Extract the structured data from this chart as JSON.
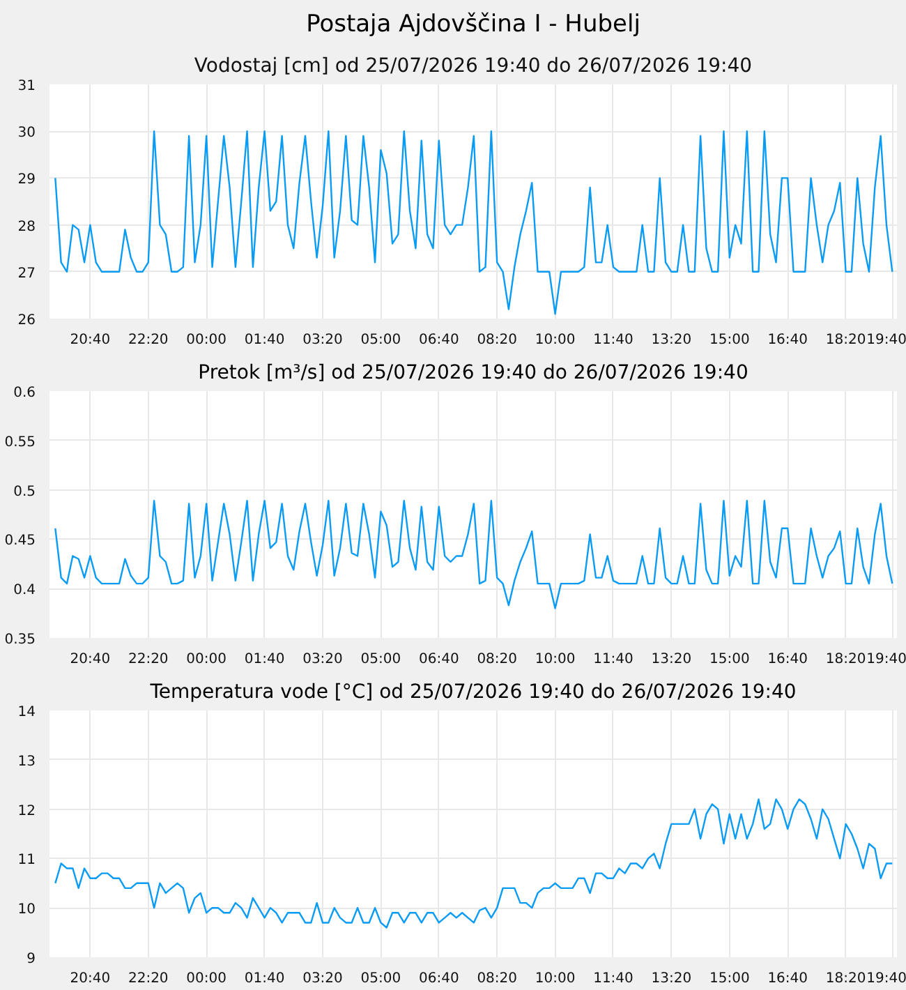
{
  "chart_data": [
    {
      "type": "line",
      "title": "Postaja Ajdovščina I - Hubelj",
      "subtitle": "Vodostaj [cm] od 25/07/2026 19:40 do 26/07/2026 19:40",
      "color": "#0a9cf5",
      "grid": true,
      "xlim": [
        "2026-07-25T19:30",
        "2026-07-26T19:48"
      ],
      "ylim": [
        26,
        31
      ],
      "yticks": [
        26,
        27,
        28,
        29,
        30,
        31
      ],
      "xticks": [
        {
          "value": "2026-07-25T20:40",
          "label": "20:40"
        },
        {
          "value": "2026-07-25T22:20",
          "label": "22:20"
        },
        {
          "value": "2026-07-26T00:00",
          "label": "00:00"
        },
        {
          "value": "2026-07-26T01:40",
          "label": "01:40"
        },
        {
          "value": "2026-07-26T03:20",
          "label": "03:20"
        },
        {
          "value": "2026-07-26T05:00",
          "label": "05:00"
        },
        {
          "value": "2026-07-26T06:40",
          "label": "06:40"
        },
        {
          "value": "2026-07-26T08:20",
          "label": "08:20"
        },
        {
          "value": "2026-07-26T10:00",
          "label": "10:00"
        },
        {
          "value": "2026-07-26T11:40",
          "label": "11:40"
        },
        {
          "value": "2026-07-26T13:20",
          "label": "13:20"
        },
        {
          "value": "2026-07-26T15:00",
          "label": "15:00"
        },
        {
          "value": "2026-07-26T16:40",
          "label": "16:40"
        },
        {
          "value": "2026-07-26T18:20",
          "label": "18:20"
        },
        {
          "value": "2026-07-26T19:40",
          "label": "19:40"
        }
      ],
      "x": [
        "2026-07-25T19:40",
        "2026-07-25T19:50",
        "2026-07-25T20:00",
        "2026-07-25T20:10",
        "2026-07-25T20:20",
        "2026-07-25T20:30",
        "2026-07-25T20:40",
        "2026-07-25T20:50",
        "2026-07-25T21:00",
        "2026-07-25T21:10",
        "2026-07-25T21:20",
        "2026-07-25T21:30",
        "2026-07-25T21:40",
        "2026-07-25T21:50",
        "2026-07-25T22:00",
        "2026-07-25T22:10",
        "2026-07-25T22:20",
        "2026-07-25T22:30",
        "2026-07-25T22:40",
        "2026-07-25T22:50",
        "2026-07-25T23:00",
        "2026-07-25T23:10",
        "2026-07-25T23:20",
        "2026-07-25T23:30",
        "2026-07-25T23:40",
        "2026-07-25T23:50",
        "2026-07-26T00:00",
        "2026-07-26T00:10",
        "2026-07-26T00:20",
        "2026-07-26T00:30",
        "2026-07-26T00:40",
        "2026-07-26T00:50",
        "2026-07-26T01:00",
        "2026-07-26T01:10",
        "2026-07-26T01:20",
        "2026-07-26T01:30",
        "2026-07-26T01:40",
        "2026-07-26T01:50",
        "2026-07-26T02:00",
        "2026-07-26T02:10",
        "2026-07-26T02:20",
        "2026-07-26T02:30",
        "2026-07-26T02:40",
        "2026-07-26T02:50",
        "2026-07-26T03:00",
        "2026-07-26T03:10",
        "2026-07-26T03:20",
        "2026-07-26T03:30",
        "2026-07-26T03:40",
        "2026-07-26T03:50",
        "2026-07-26T04:00",
        "2026-07-26T04:10",
        "2026-07-26T04:20",
        "2026-07-26T04:30",
        "2026-07-26T04:40",
        "2026-07-26T04:50",
        "2026-07-26T05:00",
        "2026-07-26T05:10",
        "2026-07-26T05:20",
        "2026-07-26T05:30",
        "2026-07-26T05:40",
        "2026-07-26T05:50",
        "2026-07-26T06:00",
        "2026-07-26T06:10",
        "2026-07-26T06:20",
        "2026-07-26T06:30",
        "2026-07-26T06:40",
        "2026-07-26T06:50",
        "2026-07-26T07:00",
        "2026-07-26T07:10",
        "2026-07-26T07:20",
        "2026-07-26T07:30",
        "2026-07-26T07:40",
        "2026-07-26T07:50",
        "2026-07-26T08:00",
        "2026-07-26T08:10",
        "2026-07-26T08:20",
        "2026-07-26T08:30",
        "2026-07-26T08:40",
        "2026-07-26T08:50",
        "2026-07-26T09:00",
        "2026-07-26T09:10",
        "2026-07-26T09:20",
        "2026-07-26T09:30",
        "2026-07-26T09:40",
        "2026-07-26T09:50",
        "2026-07-26T10:00",
        "2026-07-26T10:10",
        "2026-07-26T10:20",
        "2026-07-26T10:30",
        "2026-07-26T10:40",
        "2026-07-26T10:50",
        "2026-07-26T11:00",
        "2026-07-26T11:10",
        "2026-07-26T11:20",
        "2026-07-26T11:30",
        "2026-07-26T11:40",
        "2026-07-26T11:50",
        "2026-07-26T12:00",
        "2026-07-26T12:10",
        "2026-07-26T12:20",
        "2026-07-26T12:30",
        "2026-07-26T12:40",
        "2026-07-26T12:50",
        "2026-07-26T13:00",
        "2026-07-26T13:10",
        "2026-07-26T13:20",
        "2026-07-26T13:30",
        "2026-07-26T13:40",
        "2026-07-26T13:50",
        "2026-07-26T14:00",
        "2026-07-26T14:10",
        "2026-07-26T14:20",
        "2026-07-26T14:30",
        "2026-07-26T14:40",
        "2026-07-26T14:50",
        "2026-07-26T15:00",
        "2026-07-26T15:10",
        "2026-07-26T15:20",
        "2026-07-26T15:30",
        "2026-07-26T15:40",
        "2026-07-26T15:50",
        "2026-07-26T16:00",
        "2026-07-26T16:10",
        "2026-07-26T16:20",
        "2026-07-26T16:30",
        "2026-07-26T16:40",
        "2026-07-26T16:50",
        "2026-07-26T17:00",
        "2026-07-26T17:10",
        "2026-07-26T17:20",
        "2026-07-26T17:30",
        "2026-07-26T17:40",
        "2026-07-26T17:50",
        "2026-07-26T18:00",
        "2026-07-26T18:10",
        "2026-07-26T18:20",
        "2026-07-26T18:30",
        "2026-07-26T18:40",
        "2026-07-26T18:50",
        "2026-07-26T19:00",
        "2026-07-26T19:10",
        "2026-07-26T19:20",
        "2026-07-26T19:30",
        "2026-07-26T19:40"
      ],
      "values": [
        29.0,
        27.2,
        27.0,
        28.0,
        27.9,
        27.2,
        28.0,
        27.2,
        27.0,
        27.0,
        27.0,
        27.0,
        27.9,
        27.3,
        27.0,
        27.0,
        27.2,
        30.0,
        28.0,
        27.8,
        27.0,
        27.0,
        27.1,
        29.9,
        27.2,
        28.0,
        29.9,
        27.1,
        28.5,
        29.9,
        28.8,
        27.1,
        28.5,
        30.0,
        27.1,
        28.8,
        30.0,
        28.3,
        28.5,
        29.9,
        28.0,
        27.5,
        28.9,
        29.9,
        28.5,
        27.3,
        28.4,
        30.0,
        27.3,
        28.3,
        29.9,
        28.1,
        28.0,
        29.9,
        28.8,
        27.2,
        29.6,
        29.1,
        27.6,
        27.8,
        30.0,
        28.3,
        27.5,
        29.8,
        27.8,
        27.5,
        29.8,
        28.0,
        27.8,
        28.0,
        28.0,
        28.8,
        29.9,
        27.0,
        27.1,
        30.0,
        27.2,
        27.0,
        26.2,
        27.1,
        27.8,
        28.3,
        28.9,
        27.0,
        27.0,
        27.0,
        26.1,
        27.0,
        27.0,
        27.0,
        27.0,
        27.1,
        28.8,
        27.2,
        27.2,
        28.0,
        27.1,
        27.0,
        27.0,
        27.0,
        27.0,
        28.0,
        27.0,
        27.0,
        29.0,
        27.2,
        27.0,
        27.0,
        28.0,
        27.0,
        27.0,
        29.9,
        27.5,
        27.0,
        27.0,
        30.0,
        27.3,
        28.0,
        27.6,
        30.0,
        27.0,
        27.0,
        30.0,
        27.8,
        27.2,
        29.0,
        29.0,
        27.0,
        27.0,
        27.0,
        29.0,
        28.0,
        27.2,
        28.0,
        28.3,
        28.9,
        27.0,
        27.0,
        29.0,
        27.6,
        27.0,
        28.8,
        29.9,
        28.0,
        27.0
      ]
    },
    {
      "type": "line",
      "title": "Pretok [m³/s] od 25/07/2026 19:40 do 26/07/2026 19:40",
      "color": "#0a9cf5",
      "grid": true,
      "xlim": [
        "2026-07-25T19:30",
        "2026-07-26T19:48"
      ],
      "ylim": [
        0.35,
        0.6
      ],
      "yticks": [
        0.35,
        0.4,
        0.45,
        0.5,
        0.55,
        0.6
      ],
      "xticks": [
        {
          "value": "2026-07-25T20:40",
          "label": "20:40"
        },
        {
          "value": "2026-07-25T22:20",
          "label": "22:20"
        },
        {
          "value": "2026-07-26T00:00",
          "label": "00:00"
        },
        {
          "value": "2026-07-26T01:40",
          "label": "01:40"
        },
        {
          "value": "2026-07-26T03:20",
          "label": "03:20"
        },
        {
          "value": "2026-07-26T05:00",
          "label": "05:00"
        },
        {
          "value": "2026-07-26T06:40",
          "label": "06:40"
        },
        {
          "value": "2026-07-26T08:20",
          "label": "08:20"
        },
        {
          "value": "2026-07-26T10:00",
          "label": "10:00"
        },
        {
          "value": "2026-07-26T11:40",
          "label": "11:40"
        },
        {
          "value": "2026-07-26T13:20",
          "label": "13:20"
        },
        {
          "value": "2026-07-26T15:00",
          "label": "15:00"
        },
        {
          "value": "2026-07-26T16:40",
          "label": "16:40"
        },
        {
          "value": "2026-07-26T18:20",
          "label": "18:20"
        },
        {
          "value": "2026-07-26T19:40",
          "label": "19:40"
        }
      ],
      "x": [
        "2026-07-25T19:40",
        "2026-07-25T19:50",
        "2026-07-25T20:00",
        "2026-07-25T20:10",
        "2026-07-25T20:20",
        "2026-07-25T20:30",
        "2026-07-25T20:40",
        "2026-07-25T20:50",
        "2026-07-25T21:00",
        "2026-07-25T21:10",
        "2026-07-25T21:20",
        "2026-07-25T21:30",
        "2026-07-25T21:40",
        "2026-07-25T21:50",
        "2026-07-25T22:00",
        "2026-07-25T22:10",
        "2026-07-25T22:20",
        "2026-07-25T22:30",
        "2026-07-25T22:40",
        "2026-07-25T22:50",
        "2026-07-25T23:00",
        "2026-07-25T23:10",
        "2026-07-25T23:20",
        "2026-07-25T23:30",
        "2026-07-25T23:40",
        "2026-07-25T23:50",
        "2026-07-26T00:00",
        "2026-07-26T00:10",
        "2026-07-26T00:20",
        "2026-07-26T00:30",
        "2026-07-26T00:40",
        "2026-07-26T00:50",
        "2026-07-26T01:00",
        "2026-07-26T01:10",
        "2026-07-26T01:20",
        "2026-07-26T01:30",
        "2026-07-26T01:40",
        "2026-07-26T01:50",
        "2026-07-26T02:00",
        "2026-07-26T02:10",
        "2026-07-26T02:20",
        "2026-07-26T02:30",
        "2026-07-26T02:40",
        "2026-07-26T02:50",
        "2026-07-26T03:00",
        "2026-07-26T03:10",
        "2026-07-26T03:20",
        "2026-07-26T03:30",
        "2026-07-26T03:40",
        "2026-07-26T03:50",
        "2026-07-26T04:00",
        "2026-07-26T04:10",
        "2026-07-26T04:20",
        "2026-07-26T04:30",
        "2026-07-26T04:40",
        "2026-07-26T04:50",
        "2026-07-26T05:00",
        "2026-07-26T05:10",
        "2026-07-26T05:20",
        "2026-07-26T05:30",
        "2026-07-26T05:40",
        "2026-07-26T05:50",
        "2026-07-26T06:00",
        "2026-07-26T06:10",
        "2026-07-26T06:20",
        "2026-07-26T06:30",
        "2026-07-26T06:40",
        "2026-07-26T06:50",
        "2026-07-26T07:00",
        "2026-07-26T07:10",
        "2026-07-26T07:20",
        "2026-07-26T07:30",
        "2026-07-26T07:40",
        "2026-07-26T07:50",
        "2026-07-26T08:00",
        "2026-07-26T08:10",
        "2026-07-26T08:20",
        "2026-07-26T08:30",
        "2026-07-26T08:40",
        "2026-07-26T08:50",
        "2026-07-26T09:00",
        "2026-07-26T09:10",
        "2026-07-26T09:20",
        "2026-07-26T09:30",
        "2026-07-26T09:40",
        "2026-07-26T09:50",
        "2026-07-26T10:00",
        "2026-07-26T10:10",
        "2026-07-26T10:20",
        "2026-07-26T10:30",
        "2026-07-26T10:40",
        "2026-07-26T10:50",
        "2026-07-26T11:00",
        "2026-07-26T11:10",
        "2026-07-26T11:20",
        "2026-07-26T11:30",
        "2026-07-26T11:40",
        "2026-07-26T11:50",
        "2026-07-26T12:00",
        "2026-07-26T12:10",
        "2026-07-26T12:20",
        "2026-07-26T12:30",
        "2026-07-26T12:40",
        "2026-07-26T12:50",
        "2026-07-26T13:00",
        "2026-07-26T13:10",
        "2026-07-26T13:20",
        "2026-07-26T13:30",
        "2026-07-26T13:40",
        "2026-07-26T13:50",
        "2026-07-26T14:00",
        "2026-07-26T14:10",
        "2026-07-26T14:20",
        "2026-07-26T14:30",
        "2026-07-26T14:40",
        "2026-07-26T14:50",
        "2026-07-26T15:00",
        "2026-07-26T15:10",
        "2026-07-26T15:20",
        "2026-07-26T15:30",
        "2026-07-26T15:40",
        "2026-07-26T15:50",
        "2026-07-26T16:00",
        "2026-07-26T16:10",
        "2026-07-26T16:20",
        "2026-07-26T16:30",
        "2026-07-26T16:40",
        "2026-07-26T16:50",
        "2026-07-26T17:00",
        "2026-07-26T17:10",
        "2026-07-26T17:20",
        "2026-07-26T17:30",
        "2026-07-26T17:40",
        "2026-07-26T17:50",
        "2026-07-26T18:00",
        "2026-07-26T18:10",
        "2026-07-26T18:20",
        "2026-07-26T18:30",
        "2026-07-26T18:40",
        "2026-07-26T18:50",
        "2026-07-26T19:00",
        "2026-07-26T19:10",
        "2026-07-26T19:20",
        "2026-07-26T19:30",
        "2026-07-26T19:40"
      ],
      "values": [
        0.461,
        0.411,
        0.405,
        0.433,
        0.43,
        0.411,
        0.433,
        0.411,
        0.405,
        0.405,
        0.405,
        0.405,
        0.43,
        0.413,
        0.405,
        0.405,
        0.411,
        0.489,
        0.433,
        0.427,
        0.405,
        0.405,
        0.408,
        0.486,
        0.411,
        0.433,
        0.486,
        0.408,
        0.447,
        0.486,
        0.455,
        0.408,
        0.447,
        0.489,
        0.408,
        0.455,
        0.489,
        0.441,
        0.447,
        0.486,
        0.433,
        0.419,
        0.458,
        0.486,
        0.447,
        0.413,
        0.444,
        0.489,
        0.413,
        0.441,
        0.486,
        0.436,
        0.433,
        0.486,
        0.455,
        0.411,
        0.478,
        0.464,
        0.422,
        0.427,
        0.489,
        0.441,
        0.419,
        0.483,
        0.427,
        0.419,
        0.483,
        0.433,
        0.427,
        0.433,
        0.433,
        0.455,
        0.486,
        0.405,
        0.408,
        0.489,
        0.411,
        0.405,
        0.383,
        0.408,
        0.427,
        0.441,
        0.458,
        0.405,
        0.405,
        0.405,
        0.38,
        0.405,
        0.405,
        0.405,
        0.405,
        0.408,
        0.455,
        0.411,
        0.411,
        0.433,
        0.408,
        0.405,
        0.405,
        0.405,
        0.405,
        0.433,
        0.405,
        0.405,
        0.461,
        0.411,
        0.405,
        0.405,
        0.433,
        0.405,
        0.405,
        0.486,
        0.419,
        0.405,
        0.405,
        0.489,
        0.413,
        0.433,
        0.422,
        0.489,
        0.405,
        0.405,
        0.489,
        0.427,
        0.411,
        0.461,
        0.461,
        0.405,
        0.405,
        0.405,
        0.461,
        0.433,
        0.411,
        0.433,
        0.441,
        0.458,
        0.405,
        0.405,
        0.461,
        0.422,
        0.405,
        0.455,
        0.486,
        0.433,
        0.405
      ]
    },
    {
      "type": "line",
      "title": "Temperatura vode [°C] od 25/07/2026 19:40 do 26/07/2026 19:40",
      "color": "#0a9cf5",
      "grid": true,
      "xlim": [
        "2026-07-25T19:30",
        "2026-07-26T19:48"
      ],
      "ylim": [
        9,
        14
      ],
      "yticks": [
        9,
        10,
        11,
        12,
        13,
        14
      ],
      "xticks": [
        {
          "value": "2026-07-25T20:40",
          "label": "20:40"
        },
        {
          "value": "2026-07-25T22:20",
          "label": "22:20"
        },
        {
          "value": "2026-07-26T00:00",
          "label": "00:00"
        },
        {
          "value": "2026-07-26T01:40",
          "label": "01:40"
        },
        {
          "value": "2026-07-26T03:20",
          "label": "03:20"
        },
        {
          "value": "2026-07-26T05:00",
          "label": "05:00"
        },
        {
          "value": "2026-07-26T06:40",
          "label": "06:40"
        },
        {
          "value": "2026-07-26T08:20",
          "label": "08:20"
        },
        {
          "value": "2026-07-26T10:00",
          "label": "10:00"
        },
        {
          "value": "2026-07-26T11:40",
          "label": "11:40"
        },
        {
          "value": "2026-07-26T13:20",
          "label": "13:20"
        },
        {
          "value": "2026-07-26T15:00",
          "label": "15:00"
        },
        {
          "value": "2026-07-26T16:40",
          "label": "16:40"
        },
        {
          "value": "2026-07-26T18:20",
          "label": "18:20"
        },
        {
          "value": "2026-07-26T19:40",
          "label": "19:40"
        }
      ],
      "x": [
        "2026-07-25T19:40",
        "2026-07-25T19:50",
        "2026-07-25T20:00",
        "2026-07-25T20:10",
        "2026-07-25T20:20",
        "2026-07-25T20:30",
        "2026-07-25T20:40",
        "2026-07-25T20:50",
        "2026-07-25T21:00",
        "2026-07-25T21:10",
        "2026-07-25T21:20",
        "2026-07-25T21:30",
        "2026-07-25T21:40",
        "2026-07-25T21:50",
        "2026-07-25T22:00",
        "2026-07-25T22:10",
        "2026-07-25T22:20",
        "2026-07-25T22:30",
        "2026-07-25T22:40",
        "2026-07-25T22:50",
        "2026-07-25T23:00",
        "2026-07-25T23:10",
        "2026-07-25T23:20",
        "2026-07-25T23:30",
        "2026-07-25T23:40",
        "2026-07-25T23:50",
        "2026-07-26T00:00",
        "2026-07-26T00:10",
        "2026-07-26T00:20",
        "2026-07-26T00:30",
        "2026-07-26T00:40",
        "2026-07-26T00:50",
        "2026-07-26T01:00",
        "2026-07-26T01:10",
        "2026-07-26T01:20",
        "2026-07-26T01:30",
        "2026-07-26T01:40",
        "2026-07-26T01:50",
        "2026-07-26T02:00",
        "2026-07-26T02:10",
        "2026-07-26T02:20",
        "2026-07-26T02:30",
        "2026-07-26T02:40",
        "2026-07-26T02:50",
        "2026-07-26T03:00",
        "2026-07-26T03:10",
        "2026-07-26T03:20",
        "2026-07-26T03:30",
        "2026-07-26T03:40",
        "2026-07-26T03:50",
        "2026-07-26T04:00",
        "2026-07-26T04:10",
        "2026-07-26T04:20",
        "2026-07-26T04:30",
        "2026-07-26T04:40",
        "2026-07-26T04:50",
        "2026-07-26T05:00",
        "2026-07-26T05:10",
        "2026-07-26T05:20",
        "2026-07-26T05:30",
        "2026-07-26T05:40",
        "2026-07-26T05:50",
        "2026-07-26T06:00",
        "2026-07-26T06:10",
        "2026-07-26T06:20",
        "2026-07-26T06:30",
        "2026-07-26T06:40",
        "2026-07-26T06:50",
        "2026-07-26T07:00",
        "2026-07-26T07:10",
        "2026-07-26T07:20",
        "2026-07-26T07:30",
        "2026-07-26T07:40",
        "2026-07-26T07:50",
        "2026-07-26T08:00",
        "2026-07-26T08:10",
        "2026-07-26T08:20",
        "2026-07-26T08:30",
        "2026-07-26T08:40",
        "2026-07-26T08:50",
        "2026-07-26T09:00",
        "2026-07-26T09:10",
        "2026-07-26T09:20",
        "2026-07-26T09:30",
        "2026-07-26T09:40",
        "2026-07-26T09:50",
        "2026-07-26T10:00",
        "2026-07-26T10:10",
        "2026-07-26T10:20",
        "2026-07-26T10:30",
        "2026-07-26T10:40",
        "2026-07-26T10:50",
        "2026-07-26T11:00",
        "2026-07-26T11:10",
        "2026-07-26T11:20",
        "2026-07-26T11:30",
        "2026-07-26T11:40",
        "2026-07-26T11:50",
        "2026-07-26T12:00",
        "2026-07-26T12:10",
        "2026-07-26T12:20",
        "2026-07-26T12:30",
        "2026-07-26T12:40",
        "2026-07-26T12:50",
        "2026-07-26T13:00",
        "2026-07-26T13:10",
        "2026-07-26T13:20",
        "2026-07-26T13:30",
        "2026-07-26T13:40",
        "2026-07-26T13:50",
        "2026-07-26T14:00",
        "2026-07-26T14:10",
        "2026-07-26T14:20",
        "2026-07-26T14:30",
        "2026-07-26T14:40",
        "2026-07-26T14:50",
        "2026-07-26T15:00",
        "2026-07-26T15:10",
        "2026-07-26T15:20",
        "2026-07-26T15:30",
        "2026-07-26T15:40",
        "2026-07-26T15:50",
        "2026-07-26T16:00",
        "2026-07-26T16:10",
        "2026-07-26T16:20",
        "2026-07-26T16:30",
        "2026-07-26T16:40",
        "2026-07-26T16:50",
        "2026-07-26T17:00",
        "2026-07-26T17:10",
        "2026-07-26T17:20",
        "2026-07-26T17:30",
        "2026-07-26T17:40",
        "2026-07-26T17:50",
        "2026-07-26T18:00",
        "2026-07-26T18:10",
        "2026-07-26T18:20",
        "2026-07-26T18:30",
        "2026-07-26T18:40",
        "2026-07-26T18:50",
        "2026-07-26T19:00",
        "2026-07-26T19:10",
        "2026-07-26T19:20",
        "2026-07-26T19:30",
        "2026-07-26T19:40"
      ],
      "values": [
        10.5,
        10.9,
        10.8,
        10.8,
        10.4,
        10.8,
        10.6,
        10.6,
        10.7,
        10.7,
        10.6,
        10.6,
        10.4,
        10.4,
        10.5,
        10.5,
        10.5,
        10.0,
        10.5,
        10.3,
        10.4,
        10.5,
        10.4,
        9.9,
        10.2,
        10.3,
        9.9,
        10.0,
        10.0,
        9.9,
        9.9,
        10.1,
        10.0,
        9.8,
        10.2,
        10.0,
        9.8,
        10.0,
        9.9,
        9.7,
        9.9,
        9.9,
        9.9,
        9.7,
        9.7,
        10.1,
        9.7,
        9.7,
        10.0,
        9.8,
        9.7,
        9.7,
        10.0,
        9.7,
        9.7,
        10.0,
        9.7,
        9.6,
        9.9,
        9.9,
        9.7,
        9.9,
        9.9,
        9.7,
        9.9,
        9.9,
        9.7,
        9.8,
        9.9,
        9.8,
        9.9,
        9.8,
        9.7,
        9.95,
        10.0,
        9.8,
        10.0,
        10.4,
        10.4,
        10.4,
        10.1,
        10.1,
        10.0,
        10.3,
        10.4,
        10.4,
        10.5,
        10.4,
        10.4,
        10.4,
        10.6,
        10.6,
        10.3,
        10.7,
        10.7,
        10.6,
        10.6,
        10.8,
        10.7,
        10.9,
        10.9,
        10.8,
        11.0,
        11.1,
        10.8,
        11.3,
        11.7,
        11.7,
        11.7,
        11.7,
        12.0,
        11.4,
        11.9,
        12.1,
        12.0,
        11.3,
        11.9,
        11.4,
        11.9,
        11.4,
        11.7,
        12.2,
        11.6,
        11.7,
        12.2,
        12.0,
        11.6,
        12.0,
        12.2,
        12.1,
        11.8,
        11.4,
        12.0,
        11.8,
        11.4,
        11.0,
        11.7,
        11.5,
        11.2,
        10.8,
        11.3,
        11.2,
        10.6,
        10.9,
        10.9
      ]
    }
  ]
}
